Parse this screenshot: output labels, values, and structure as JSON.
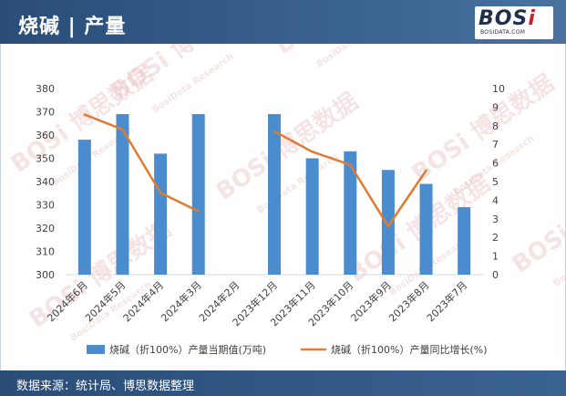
{
  "header": {
    "title": "烧碱 | 产量"
  },
  "logo": {
    "mark_prefix": "BOS",
    "mark_suffix": "i",
    "sub": "BOSIDATA.COM"
  },
  "footer": {
    "source": "数据来源：统计局、博思数据整理"
  },
  "watermark": {
    "text": "BOSi 博思数据",
    "subtext": "BosiData Research"
  },
  "colors": {
    "header_bg": "#2f5686",
    "bar": "#4a8ccd",
    "line": "#e07b32",
    "axis_text": "#404040",
    "grid": "#d9d9d9"
  },
  "chart_data": {
    "type": "bar",
    "categories": [
      "2024年6月",
      "2024年5月",
      "2024年4月",
      "2024年3月",
      "2024年2月",
      "2023年12月",
      "2023年11月",
      "2023年10月",
      "2023年9月",
      "2023年8月",
      "2023年7月"
    ],
    "series": [
      {
        "name": "烧碱（折100%）产量当期值(万吨)",
        "type": "bar",
        "axis": "left",
        "values": [
          358,
          369,
          352,
          369,
          null,
          369,
          350,
          353,
          345,
          339,
          329
        ]
      },
      {
        "name": "烧碱（折100%）产量同比增长(%)",
        "type": "line",
        "axis": "right",
        "values": [
          8.6,
          7.8,
          4.4,
          3.4,
          null,
          7.7,
          6.6,
          5.9,
          2.6,
          5.6,
          null
        ]
      }
    ],
    "y_left": {
      "min": 300,
      "max": 380,
      "ticks": [
        300,
        310,
        320,
        330,
        340,
        350,
        360,
        370,
        380
      ]
    },
    "y_right": {
      "min": 0,
      "max": 10,
      "ticks": [
        0,
        1,
        2,
        3,
        4,
        5,
        6,
        7,
        8,
        9,
        10
      ]
    },
    "grid": false,
    "legend_position": "bottom"
  }
}
